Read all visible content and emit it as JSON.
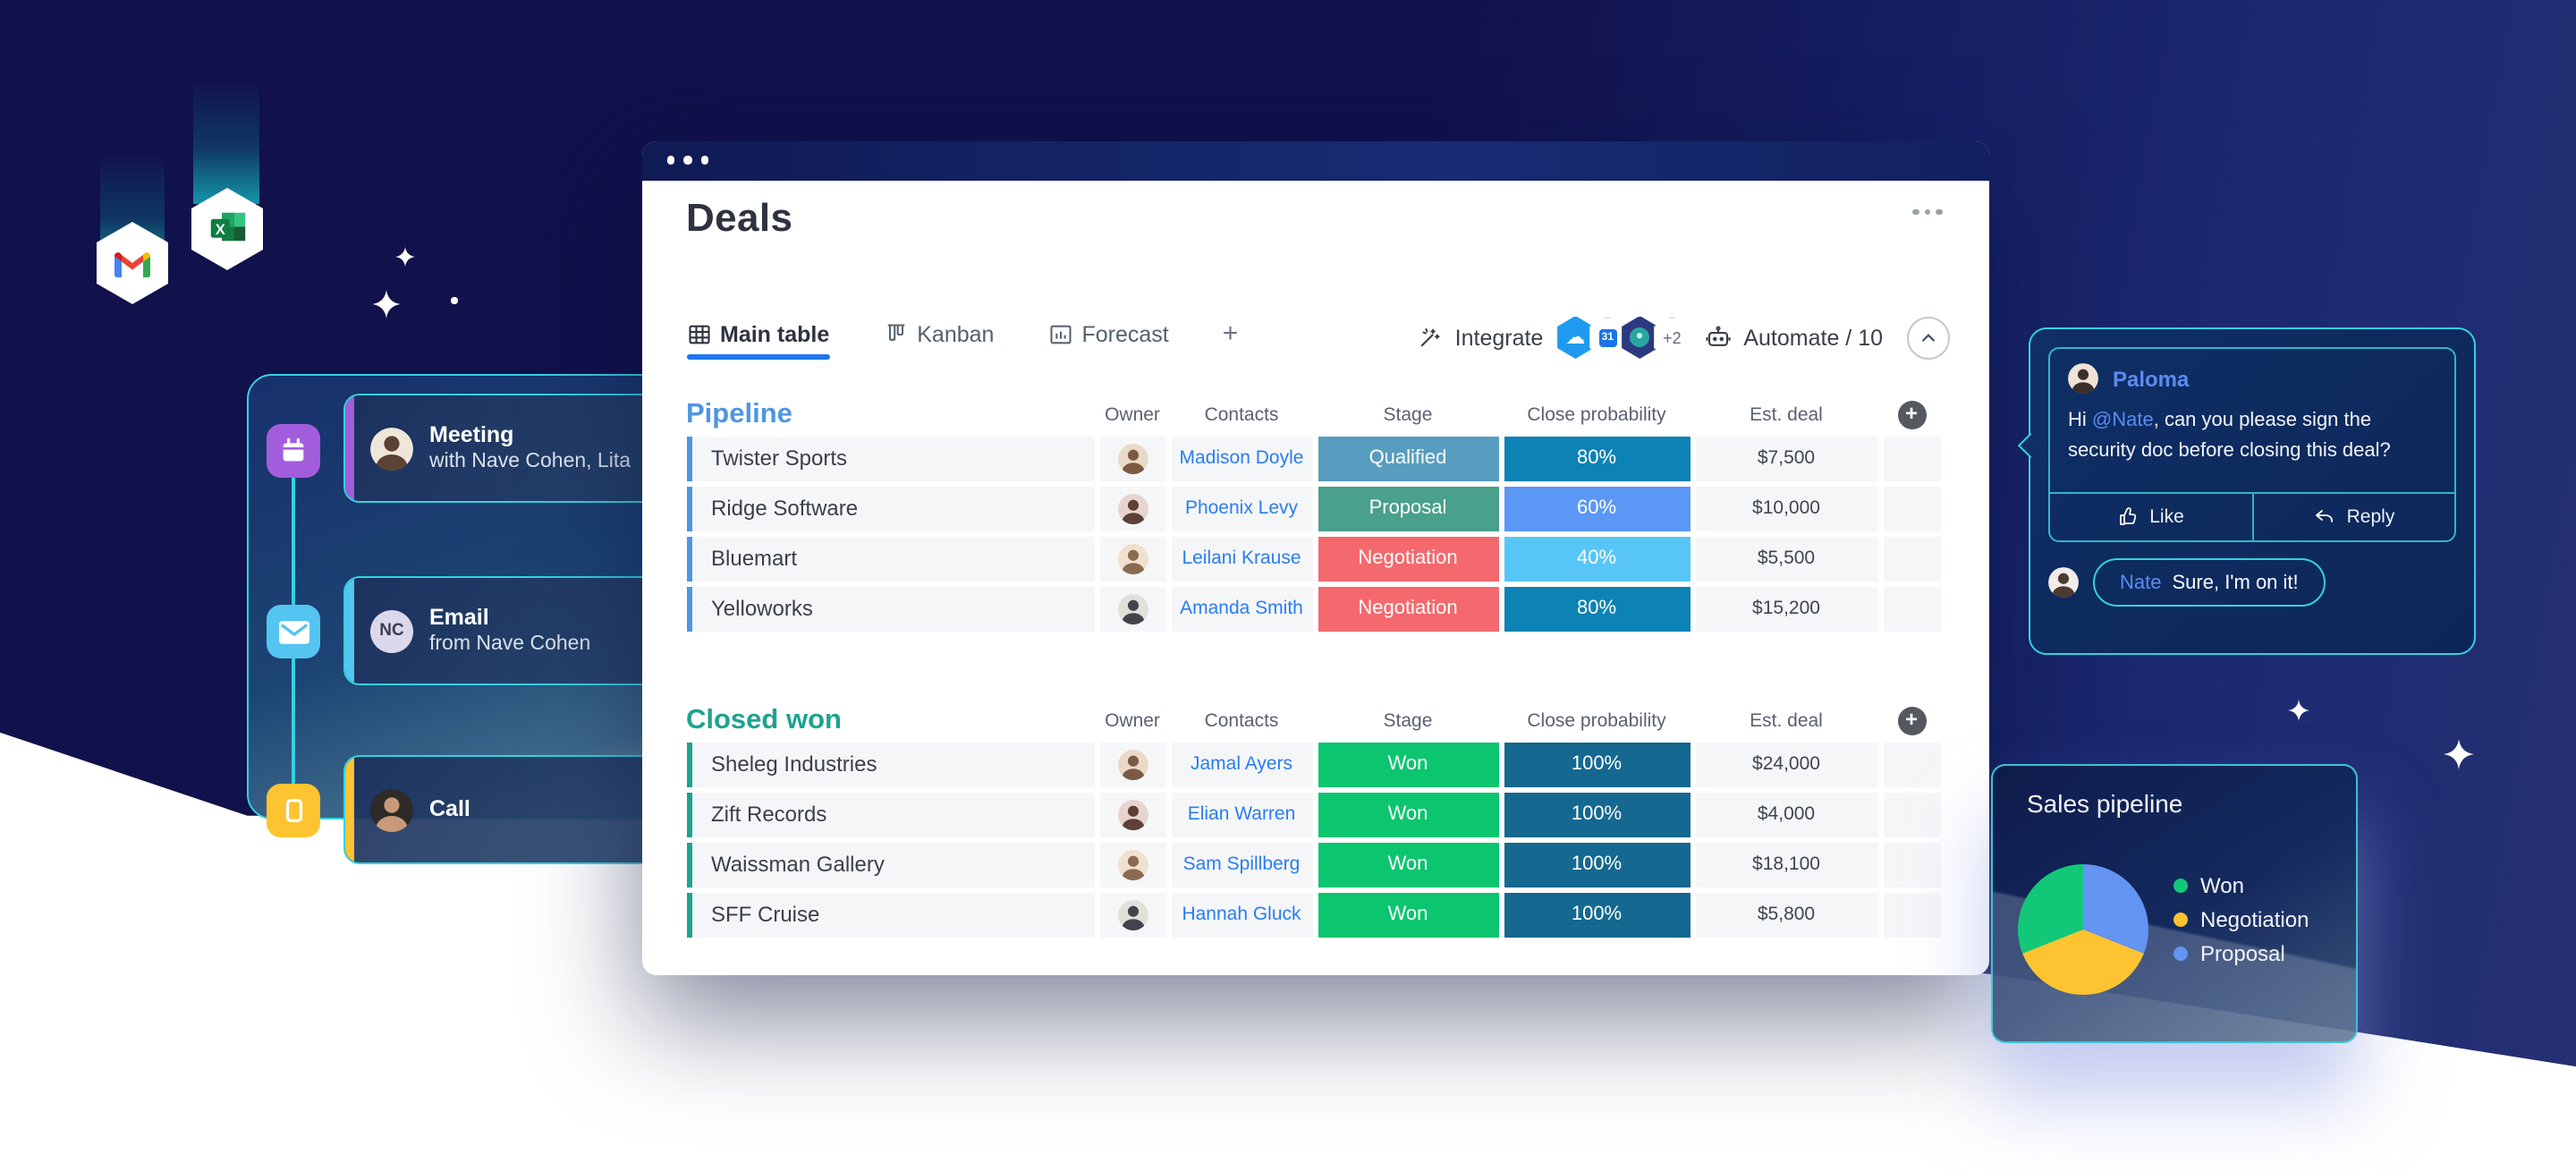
{
  "app_window": {
    "title": "Deals",
    "tabs": [
      {
        "label": "Main table",
        "active": true
      },
      {
        "label": "Kanban",
        "active": false
      },
      {
        "label": "Forecast",
        "active": false
      }
    ],
    "add_tab_label": "+",
    "toolbar": {
      "integrate_label": "Integrate",
      "more_apps_badge": "+2",
      "automate_label": "Automate / 10"
    },
    "table": {
      "columns": [
        "Owner",
        "Contacts",
        "Stage",
        "Close probability",
        "Est. deal"
      ],
      "add_column_label": "+",
      "groups": [
        {
          "name": "Pipeline",
          "color": "#4e96e2",
          "rows": [
            {
              "item": "Twister Sports",
              "contact": "Madison Doyle",
              "stage": "Qualified",
              "stage_color": "#579dbf",
              "probability": "80%",
              "probability_color": "#0c82b5",
              "est_deal": "$7,500"
            },
            {
              "item": "Ridge Software",
              "contact": "Phoenix Levy",
              "stage": "Proposal",
              "stage_color": "#49a08c",
              "probability": "60%",
              "probability_color": "#5b97f5",
              "est_deal": "$10,000"
            },
            {
              "item": "Bluemart",
              "contact": "Leilani Krause",
              "stage": "Negotiation",
              "stage_color": "#f4696d",
              "probability": "40%",
              "probability_color": "#57c6f6",
              "est_deal": "$5,500"
            },
            {
              "item": "Yelloworks",
              "contact": "Amanda Smith",
              "stage": "Negotiation",
              "stage_color": "#f4696d",
              "probability": "80%",
              "probability_color": "#0c82b5",
              "est_deal": "$15,200"
            }
          ]
        },
        {
          "name": "Closed won",
          "color": "#1da38f",
          "rows": [
            {
              "item": "Sheleg Industries",
              "contact": "Jamal Ayers",
              "stage": "Won",
              "stage_color": "#0bc56f",
              "probability": "100%",
              "probability_color": "#15688f",
              "est_deal": "$24,000"
            },
            {
              "item": "Zift Records",
              "contact": "Elian Warren",
              "stage": "Won",
              "stage_color": "#0bc56f",
              "probability": "100%",
              "probability_color": "#15688f",
              "est_deal": "$4,000"
            },
            {
              "item": "Waissman Gallery",
              "contact": "Sam Spillberg",
              "stage": "Won",
              "stage_color": "#0bc56f",
              "probability": "100%",
              "probability_color": "#15688f",
              "est_deal": "$18,100"
            },
            {
              "item": "SFF Cruise",
              "contact": "Hannah Gluck",
              "stage": "Won",
              "stage_color": "#0bc56f",
              "probability": "100%",
              "probability_color": "#15688f",
              "est_deal": "$5,800"
            }
          ]
        }
      ]
    }
  },
  "notifications": {
    "cards": [
      {
        "title": "Meeting",
        "subtitle": "with Nave Cohen, Lita",
        "accent": "#a25ddc"
      },
      {
        "title": "Email",
        "subtitle": "from Nave Cohen",
        "accent": "#54c5f0",
        "avatar_initials": "NC"
      },
      {
        "title": "Call",
        "subtitle": "",
        "accent": "#fdc331"
      }
    ]
  },
  "chat": {
    "author": "Paloma",
    "message": {
      "prefix": "Hi ",
      "mention": "@Nate",
      "line1_rest": ", can you please sign the",
      "line2": "security doc before closing this deal?"
    },
    "like_label": "Like",
    "reply_label": "Reply",
    "reply": {
      "author": "Nate",
      "text": "Sure, I'm on it!"
    }
  },
  "chart_data": {
    "type": "pie",
    "title": "Sales pipeline",
    "legend_position": "right",
    "slices": [
      {
        "label": "Won",
        "value": 31,
        "color": "#12c878"
      },
      {
        "label": "Negotiation",
        "value": 38,
        "color": "#fdc331"
      },
      {
        "label": "Proposal",
        "value": 31,
        "color": "#6494f2"
      }
    ]
  }
}
